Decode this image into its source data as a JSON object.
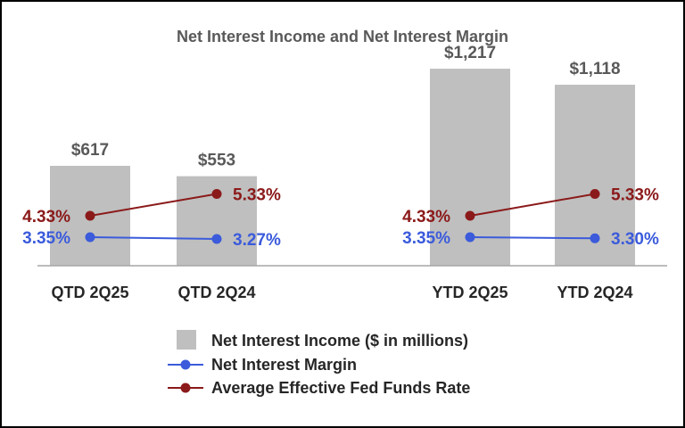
{
  "chart_data": {
    "type": "bar",
    "title": "Net Interest Income and Net Interest Margin",
    "groups": [
      {
        "name": "QTD",
        "categories": [
          "QTD 2Q25",
          "QTD 2Q24"
        ]
      },
      {
        "name": "YTD",
        "categories": [
          "YTD 2Q25",
          "YTD 2Q24"
        ]
      }
    ],
    "categories": [
      "QTD 2Q25",
      "QTD 2Q24",
      "YTD 2Q25",
      "YTD 2Q24"
    ],
    "series": [
      {
        "name": "Net Interest Income ($ in millions)",
        "type": "bar",
        "values": [
          617,
          553,
          1217,
          1118
        ],
        "labels": [
          "$617",
          "$553",
          "$1,217",
          "$1,118"
        ],
        "color": "#bfbfbf"
      },
      {
        "name": "Net Interest Margin",
        "type": "line",
        "values": [
          3.35,
          3.27,
          3.35,
          3.3
        ],
        "labels": [
          "3.35%",
          "3.27%",
          "3.35%",
          "3.30%"
        ],
        "color": "#3b5bdb"
      },
      {
        "name": "Average Effective Fed Funds Rate",
        "type": "line",
        "values": [
          4.33,
          5.33,
          4.33,
          5.33
        ],
        "labels": [
          "4.33%",
          "5.33%",
          "4.33%",
          "5.33%"
        ],
        "color": "#8b1a1a"
      }
    ],
    "ylim": [
      0,
      1300
    ],
    "xlabel": "",
    "ylabel": "",
    "legend_position": "bottom-center"
  },
  "colors": {
    "title": "#595959",
    "bar_label": "#595959",
    "axis_label": "#262626",
    "axis_line": "#a6a6a6"
  }
}
